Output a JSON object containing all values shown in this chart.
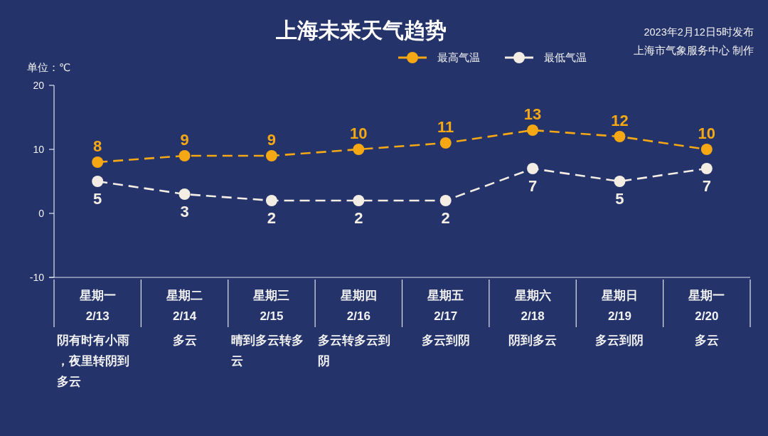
{
  "chart_data": {
    "type": "line",
    "title": "上海未来天气趋势",
    "ylabel": "单位：℃",
    "annotations": [
      "2023年2月12日5时发布",
      "上海市气象服务中心 制作"
    ],
    "categories": [
      "星期一\n2/13\n阴有时有小雨，夜里转阴到多云",
      "星期二\n2/14\n多云",
      "星期三\n2/15\n晴到多云转多云",
      "星期四\n2/16\n多云转多云到阴",
      "星期五\n2/17\n多云到阴",
      "星期六\n2/18\n阴到多云",
      "星期日\n2/19\n多云到阴",
      "星期一\n2/20\n多云"
    ],
    "series": [
      {
        "name": "最高气温",
        "color": "#f5a814",
        "values": [
          8,
          9,
          9,
          10,
          11,
          13,
          12,
          10
        ]
      },
      {
        "name": "最低气温",
        "color": "#f3ede4",
        "values": [
          5,
          3,
          2,
          2,
          2,
          7,
          5,
          7
        ]
      }
    ],
    "ylim": [
      -10,
      20
    ],
    "yticks": [
      -10,
      0,
      10,
      20
    ],
    "grid": false,
    "legend": "top",
    "marker": "circle",
    "line_style": "dashed",
    "data_labels": true
  }
}
